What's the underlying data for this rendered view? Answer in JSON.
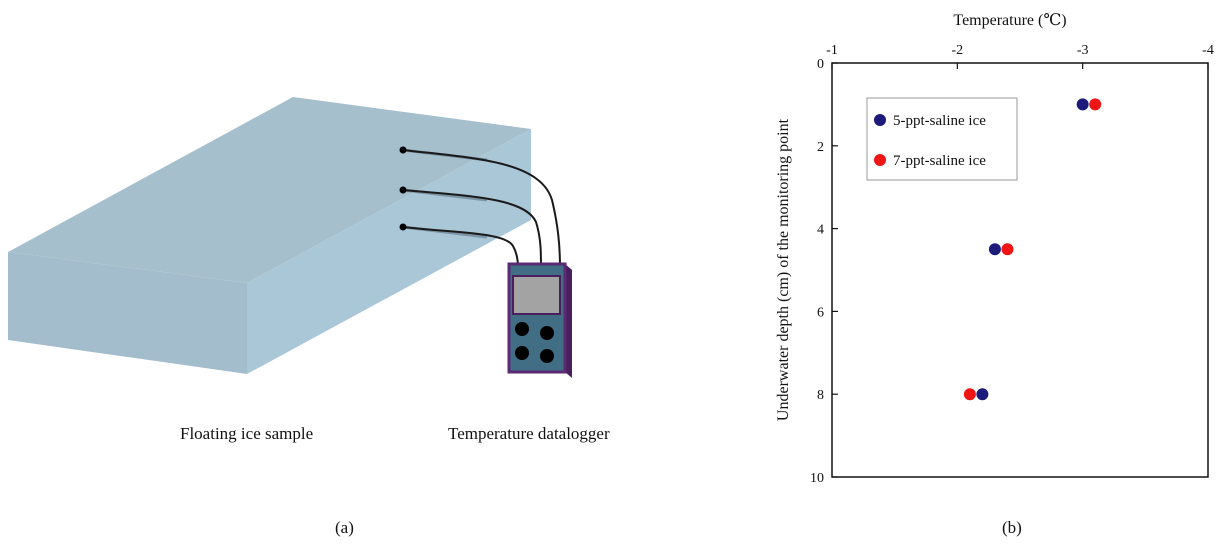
{
  "panel_a": {
    "label": "(a)",
    "ice_label": "Floating ice sample",
    "logger_label": "Temperature datalogger"
  },
  "panel_b": {
    "label": "(b)"
  },
  "colors": {
    "ice_top": "#a6bfcd",
    "ice_side": "#a9c7d6",
    "ice_front": "#a3bdcc",
    "device_frame": "#5a2a72",
    "device_body": "#416e85",
    "device_screen": "#a3a3a3",
    "series_5ppt": "#1c1b7c",
    "series_7ppt": "#f01414"
  },
  "chart_data": {
    "type": "scatter",
    "xlabel": "Temperature (℃)",
    "ylabel": "Underwater depth (cm) of the monitoring point",
    "xlim": [
      -1,
      -4
    ],
    "ylim": [
      0,
      10
    ],
    "x_axis_position": "top",
    "y_inverted": true,
    "xticks": [
      -1,
      -2,
      -3,
      -4
    ],
    "yticks": [
      0,
      2,
      4,
      6,
      8,
      10
    ],
    "grid": false,
    "legend_position": "upper-left",
    "series": [
      {
        "name": "5-ppt-saline ice",
        "color": "#1c1b7c",
        "points": [
          {
            "x": -3.0,
            "y": 1.0
          },
          {
            "x": -2.3,
            "y": 4.5
          },
          {
            "x": -2.2,
            "y": 8.0
          }
        ]
      },
      {
        "name": "7-ppt-saline ice",
        "color": "#f01414",
        "points": [
          {
            "x": -3.1,
            "y": 1.0
          },
          {
            "x": -2.4,
            "y": 4.5
          },
          {
            "x": -2.1,
            "y": 8.0
          }
        ]
      }
    ]
  }
}
